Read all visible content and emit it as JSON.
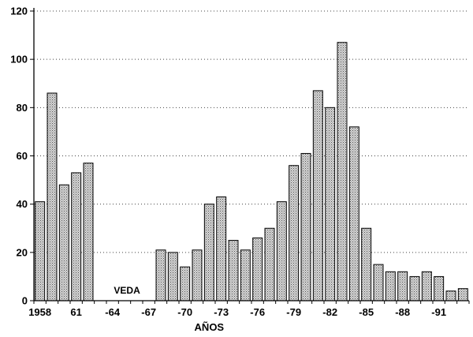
{
  "chart_data": {
    "type": "bar",
    "title": "",
    "xlabel": "AÑOS",
    "ylabel": "",
    "ylim": [
      0,
      120
    ],
    "yticks": [
      0,
      20,
      40,
      60,
      80,
      100,
      120
    ],
    "grid": "horizontal-dotted",
    "categories": [
      "1958",
      "1959",
      "1960",
      "1961",
      "1962",
      "1963",
      "1964",
      "1965",
      "1966",
      "1967",
      "1968",
      "1969",
      "1970",
      "1971",
      "1972",
      "1973",
      "1974",
      "1975",
      "1976",
      "1977",
      "1978",
      "1979",
      "1980",
      "1981",
      "1982",
      "1983",
      "1984",
      "1985",
      "1986",
      "1987",
      "1988",
      "1989",
      "1990",
      "1991",
      "1992",
      "1993"
    ],
    "values": [
      41,
      86,
      48,
      53,
      57,
      0,
      0,
      0,
      0,
      0,
      21,
      20,
      14,
      21,
      40,
      43,
      25,
      21,
      26,
      30,
      41,
      56,
      61,
      87,
      80,
      107,
      72,
      30,
      15,
      12,
      12,
      10,
      12,
      10,
      4,
      5
    ],
    "xtick_labels": [
      {
        "year": "1958",
        "label": "1958"
      },
      {
        "year": "1961",
        "label": "61"
      },
      {
        "year": "1964",
        "label": "-64"
      },
      {
        "year": "1967",
        "label": "-67"
      },
      {
        "year": "1970",
        "label": "-70"
      },
      {
        "year": "1973",
        "label": "-73"
      },
      {
        "year": "1976",
        "label": "-76"
      },
      {
        "year": "1979",
        "label": "-79"
      },
      {
        "year": "1982",
        "label": "-82"
      },
      {
        "year": "1985",
        "label": "-85"
      },
      {
        "year": "1988",
        "label": "-88"
      },
      {
        "year": "1991",
        "label": "-91"
      }
    ],
    "annotation": {
      "text": "VEDA",
      "year": "1965"
    }
  }
}
